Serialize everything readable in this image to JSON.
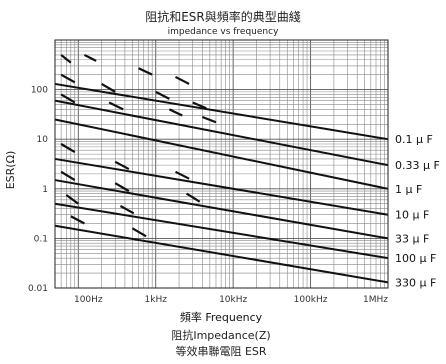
{
  "chart_data": {
    "type": "line",
    "title": "阻抗和ESR與頻率的典型曲綫",
    "subtitle": "impedance vs frequency",
    "xlabel": "頻率  Frequency",
    "ylabel": "ESR(Ω)",
    "x_scale": "log",
    "y_scale": "log",
    "xlim": [
      50,
      1000000
    ],
    "ylim": [
      0.01,
      1000
    ],
    "grid": true,
    "x_ticks": [
      {
        "value": 100,
        "label": "100Hz"
      },
      {
        "value": 1000,
        "label": "1kHz"
      },
      {
        "value": 10000,
        "label": "10kHz"
      },
      {
        "value": 100000,
        "label": "100kHz"
      },
      {
        "value": 1000000,
        "label": "1MHz"
      }
    ],
    "y_ticks": [
      {
        "value": 100,
        "label": "100"
      },
      {
        "value": 10,
        "label": "10"
      },
      {
        "value": 1,
        "label": "1"
      },
      {
        "value": 0.1,
        "label": "0.1"
      },
      {
        "value": 0.01,
        "label": "0.01"
      }
    ],
    "series": [
      {
        "name": "0.1μF",
        "impedance": [
          {
            "x": 50,
            "y": 130
          },
          {
            "x": 1000000,
            "y": 10
          }
        ],
        "esr": [
          [
            60,
            500,
            80,
            350
          ],
          [
            120,
            500,
            170,
            380
          ],
          [
            600,
            270,
            900,
            200
          ],
          [
            1800,
            180,
            2700,
            130
          ]
        ]
      },
      {
        "name": "0.33μF",
        "impedance": [
          {
            "x": 50,
            "y": 60
          },
          {
            "x": 1000000,
            "y": 3
          }
        ],
        "esr": [
          [
            60,
            200,
            90,
            140
          ],
          [
            200,
            130,
            300,
            90
          ],
          [
            1000,
            90,
            1500,
            65
          ],
          [
            3000,
            55,
            4500,
            42
          ]
        ]
      },
      {
        "name": "1μF",
        "impedance": [
          {
            "x": 50,
            "y": 25
          },
          {
            "x": 1000000,
            "y": 1
          }
        ],
        "esr": [
          [
            60,
            80,
            90,
            55
          ],
          [
            250,
            55,
            380,
            40
          ],
          [
            1500,
            40,
            2200,
            30
          ],
          [
            4000,
            28,
            6000,
            22
          ]
        ]
      },
      {
        "name": "10μF",
        "impedance": [
          {
            "x": 50,
            "y": 4
          },
          {
            "x": 1000000,
            "y": 0.3
          }
        ],
        "esr": [
          [
            60,
            8,
            90,
            5.5
          ],
          [
            300,
            3.5,
            450,
            2.5
          ],
          [
            1800,
            2.2,
            2700,
            1.6
          ]
        ]
      },
      {
        "name": "33μF",
        "impedance": [
          {
            "x": 50,
            "y": 1.5
          },
          {
            "x": 1000000,
            "y": 0.1
          }
        ],
        "esr": [
          [
            60,
            2.2,
            90,
            1.5
          ],
          [
            300,
            1.3,
            450,
            0.9
          ],
          [
            2500,
            0.8,
            3700,
            0.55
          ]
        ]
      },
      {
        "name": "100μF",
        "impedance": [
          {
            "x": 50,
            "y": 0.5
          },
          {
            "x": 1000000,
            "y": 0.04
          }
        ],
        "esr": [
          [
            70,
            0.75,
            100,
            0.5
          ],
          [
            350,
            0.45,
            520,
            0.32
          ]
        ]
      },
      {
        "name": "330μF",
        "impedance": [
          {
            "x": 50,
            "y": 0.18
          },
          {
            "x": 1000000,
            "y": 0.013
          }
        ],
        "esr": [
          [
            80,
            0.28,
            120,
            0.2
          ],
          [
            500,
            0.16,
            750,
            0.11
          ]
        ]
      }
    ],
    "series_labels": [
      "0.1 μ F",
      "0.33 μ F",
      "1 μ F",
      "10 μ F",
      "33 μ F",
      "100 μ F",
      "330 μ F"
    ]
  },
  "footer": {
    "line1": "阻抗Impedance(Z)",
    "line2": "等效串聯電阻 ESR"
  }
}
